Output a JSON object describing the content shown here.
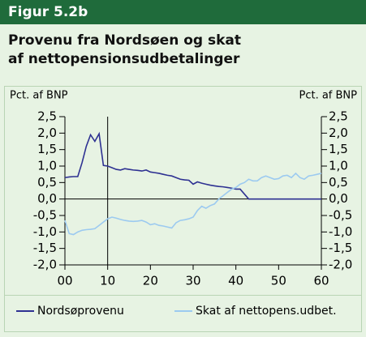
{
  "chart_data": {
    "type": "line",
    "figure_label": "Figur 5.2b",
    "title": "Provenu fra Nordsøen og skat af nettopensionsudbetalinger",
    "ylabel": "Pct. af BNP",
    "y2label": "Pct. af BNP",
    "x": [
      0,
      1,
      2,
      3,
      4,
      5,
      6,
      7,
      8,
      9,
      10,
      11,
      12,
      13,
      14,
      15,
      16,
      17,
      18,
      19,
      20,
      21,
      22,
      23,
      24,
      25,
      26,
      27,
      28,
      29,
      30,
      31,
      32,
      33,
      34,
      35,
      36,
      37,
      38,
      39,
      40,
      41,
      42,
      43,
      44,
      45,
      46,
      47,
      48,
      49,
      50,
      51,
      52,
      53,
      54,
      55,
      56,
      57,
      58,
      59,
      60
    ],
    "xlim": [
      0,
      60
    ],
    "xticks": [
      {
        "value": 0,
        "label": "00"
      },
      10,
      20,
      30,
      40,
      50,
      60
    ],
    "ylim": [
      -2.0,
      2.5
    ],
    "yticks": [
      {
        "value": 2.5,
        "label": "2,5"
      },
      {
        "value": 2.0,
        "label": "2,0"
      },
      {
        "value": 1.5,
        "label": "1,5"
      },
      {
        "value": 1.0,
        "label": "1,0"
      },
      {
        "value": 0.5,
        "label": "0,5"
      },
      {
        "value": 0,
        "label": "0,0"
      },
      {
        "value": -0.5,
        "label": "-0,5"
      },
      {
        "value": -1.0,
        "label": "-1,0"
      },
      {
        "value": -1.5,
        "label": "-1,5"
      },
      {
        "value": -2.0,
        "label": "-2,0"
      }
    ],
    "y2lim": [
      -2.0,
      2.5
    ],
    "y2ticks": [
      {
        "value": 2.5,
        "label": "2,5"
      },
      {
        "value": 2.0,
        "label": "2,0"
      },
      {
        "value": 1.5,
        "label": "1,5"
      },
      {
        "value": 1.0,
        "label": "1,0"
      },
      {
        "value": 0.5,
        "label": "0,5"
      },
      {
        "value": 0,
        "label": "0,0"
      },
      {
        "value": -0.5,
        "label": "-0,5"
      },
      {
        "value": -1.0,
        "label": "-1,0"
      },
      {
        "value": -1.5,
        "label": "-1,5"
      },
      {
        "value": -2.0,
        "label": "-2,0"
      }
    ],
    "vline_x": 10,
    "legend": "bottom",
    "series": [
      {
        "name": "Nordsøprovenu",
        "color": "#2e3192",
        "values": [
          0.65,
          0.67,
          0.68,
          0.68,
          1.1,
          1.6,
          1.95,
          1.75,
          1.98,
          1.02,
          1.0,
          0.95,
          0.9,
          0.88,
          0.92,
          0.9,
          0.88,
          0.87,
          0.85,
          0.88,
          0.82,
          0.8,
          0.78,
          0.75,
          0.72,
          0.7,
          0.65,
          0.6,
          0.58,
          0.57,
          0.45,
          0.52,
          0.48,
          0.45,
          0.42,
          0.4,
          0.38,
          0.37,
          0.35,
          0.33,
          0.3,
          0.3,
          0.15,
          0,
          0,
          0,
          0,
          0,
          0,
          0,
          0,
          0,
          0,
          0,
          0,
          0,
          0,
          0,
          0,
          0,
          0
        ]
      },
      {
        "name": "Skat af nettopens.udbet.",
        "color": "#9ccaf0",
        "values": [
          -0.65,
          -1.05,
          -1.08,
          -1.0,
          -0.95,
          -0.93,
          -0.92,
          -0.9,
          -0.8,
          -0.7,
          -0.6,
          -0.55,
          -0.58,
          -0.62,
          -0.65,
          -0.67,
          -0.68,
          -0.67,
          -0.65,
          -0.7,
          -0.78,
          -0.75,
          -0.8,
          -0.82,
          -0.85,
          -0.88,
          -0.72,
          -0.65,
          -0.63,
          -0.6,
          -0.55,
          -0.35,
          -0.22,
          -0.28,
          -0.2,
          -0.15,
          0.0,
          0.1,
          0.2,
          0.3,
          0.35,
          0.45,
          0.5,
          0.6,
          0.55,
          0.55,
          0.65,
          0.7,
          0.65,
          0.6,
          0.62,
          0.7,
          0.72,
          0.65,
          0.78,
          0.65,
          0.6,
          0.7,
          0.72,
          0.75,
          0.78
        ]
      }
    ]
  }
}
